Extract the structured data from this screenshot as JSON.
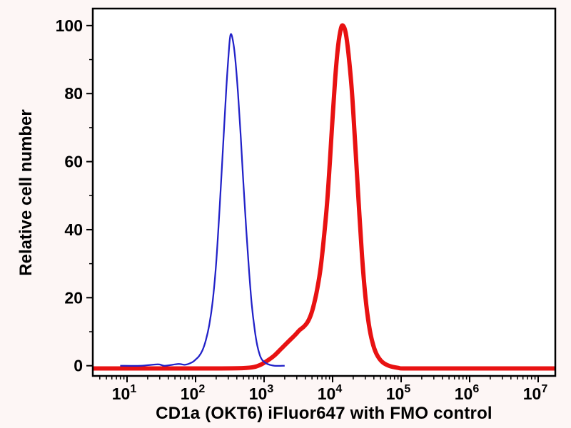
{
  "figure": {
    "background": "#fdf6f5",
    "plot_background": "#ffffff",
    "axis_color": "#000000"
  },
  "chart_data": {
    "type": "line",
    "subtype": "flow-cytometry-histogram-overlay",
    "title": "",
    "xlabel": "CD1a (OKT6) iFluor647 with FMO control",
    "ylabel": "Relative cell number",
    "x_scale": "log10",
    "x_range_log10": [
      0.5,
      7.25
    ],
    "y_range": [
      -3,
      105
    ],
    "x_tick_base": "10",
    "x_tick_exponents": [
      "1",
      "2",
      "3",
      "4",
      "5",
      "6",
      "7"
    ],
    "y_ticks": [
      0,
      20,
      40,
      60,
      80,
      100
    ],
    "grid": false,
    "legend": null,
    "series": [
      {
        "name": "FMO control",
        "color": "#2121c8",
        "stroke_width": 2.25,
        "points_log10x_y": [
          [
            0.9,
            0
          ],
          [
            1.2,
            0
          ],
          [
            1.45,
            0.4
          ],
          [
            1.55,
            0
          ],
          [
            1.75,
            0.5
          ],
          [
            1.85,
            0.3
          ],
          [
            1.95,
            1
          ],
          [
            2.0,
            1.8
          ],
          [
            2.05,
            2.8
          ],
          [
            2.1,
            4.5
          ],
          [
            2.15,
            7.5
          ],
          [
            2.2,
            12
          ],
          [
            2.25,
            19
          ],
          [
            2.3,
            30
          ],
          [
            2.35,
            46
          ],
          [
            2.4,
            64
          ],
          [
            2.45,
            82
          ],
          [
            2.48,
            91
          ],
          [
            2.5,
            96
          ],
          [
            2.52,
            97.5
          ],
          [
            2.55,
            95
          ],
          [
            2.58,
            90
          ],
          [
            2.62,
            80
          ],
          [
            2.66,
            67
          ],
          [
            2.7,
            53
          ],
          [
            2.74,
            40
          ],
          [
            2.78,
            28
          ],
          [
            2.82,
            18
          ],
          [
            2.86,
            11
          ],
          [
            2.9,
            6
          ],
          [
            2.94,
            3
          ],
          [
            2.98,
            1.5
          ],
          [
            3.05,
            0.5
          ],
          [
            3.15,
            0
          ],
          [
            3.3,
            0
          ]
        ]
      },
      {
        "name": "CD1a (OKT6) iFluor647",
        "color": "#e81212",
        "stroke_width": 6,
        "points_log10x_y": [
          [
            0.5,
            -0.8
          ],
          [
            1.5,
            -0.8
          ],
          [
            2.3,
            -0.8
          ],
          [
            2.7,
            -0.7
          ],
          [
            2.85,
            -0.4
          ],
          [
            2.95,
            0.3
          ],
          [
            3.05,
            1.5
          ],
          [
            3.15,
            3
          ],
          [
            3.25,
            5
          ],
          [
            3.35,
            7
          ],
          [
            3.45,
            9
          ],
          [
            3.52,
            10.5
          ],
          [
            3.58,
            11.5
          ],
          [
            3.64,
            13
          ],
          [
            3.7,
            16
          ],
          [
            3.76,
            21
          ],
          [
            3.82,
            28
          ],
          [
            3.87,
            37
          ],
          [
            3.92,
            48
          ],
          [
            3.96,
            60
          ],
          [
            4.0,
            73
          ],
          [
            4.04,
            85
          ],
          [
            4.08,
            94
          ],
          [
            4.12,
            99
          ],
          [
            4.15,
            100
          ],
          [
            4.19,
            98
          ],
          [
            4.23,
            92
          ],
          [
            4.28,
            81
          ],
          [
            4.33,
            65
          ],
          [
            4.38,
            48
          ],
          [
            4.43,
            32
          ],
          [
            4.48,
            20
          ],
          [
            4.53,
            12
          ],
          [
            4.58,
            7
          ],
          [
            4.64,
            3.5
          ],
          [
            4.72,
            1.2
          ],
          [
            4.82,
            0
          ],
          [
            4.95,
            -0.6
          ],
          [
            5.1,
            -0.8
          ],
          [
            6.0,
            -0.8
          ],
          [
            7.25,
            -0.8
          ]
        ]
      }
    ]
  }
}
